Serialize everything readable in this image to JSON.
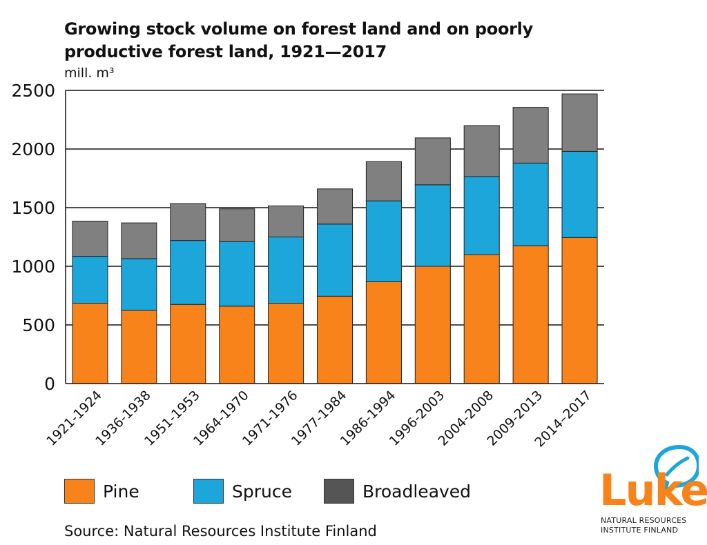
{
  "colors": {
    "pine": "#f7831a",
    "spruce": "#1ca6d9",
    "broadleaved": "#808080",
    "broadleaved_legend": "#555555",
    "logo_orange": "#f7831a",
    "logo_blue": "#1ca6d9"
  },
  "chart_data": {
    "type": "bar",
    "stacked": true,
    "title": "Growing stock volume on forest land and on poorly productive forest land, 1921—2017",
    "ylabel": "mill. m³",
    "xlabel": "",
    "ylim": [
      0,
      2500
    ],
    "yticks": [
      0,
      500,
      1000,
      1500,
      2000,
      2500
    ],
    "grid": true,
    "categories": [
      "1921-1924",
      "1936-1938",
      "1951-1953",
      "1964-1970",
      "1971-1976",
      "1977-1984",
      "1986-1994",
      "1996-2003",
      "2004-2008",
      "2009-2013",
      "2014–2017"
    ],
    "series": [
      {
        "name": "Pine",
        "values": [
          685,
          625,
          675,
          660,
          685,
          745,
          868,
          1000,
          1100,
          1175,
          1245
        ]
      },
      {
        "name": "Spruce",
        "values": [
          400,
          440,
          545,
          550,
          565,
          615,
          690,
          695,
          665,
          705,
          735
        ]
      },
      {
        "name": "Broadleaved",
        "values": [
          300,
          305,
          315,
          280,
          265,
          300,
          335,
          400,
          435,
          475,
          490
        ]
      }
    ]
  },
  "legend": {
    "pine": "Pine",
    "spruce": "Spruce",
    "broadleaved": "Broadleaved"
  },
  "source": "Source: Natural Resources Institute Finland",
  "logo": {
    "word": "Luke",
    "line1": "NATURAL RESOURCES",
    "line2": "INSTITUTE FINLAND"
  }
}
